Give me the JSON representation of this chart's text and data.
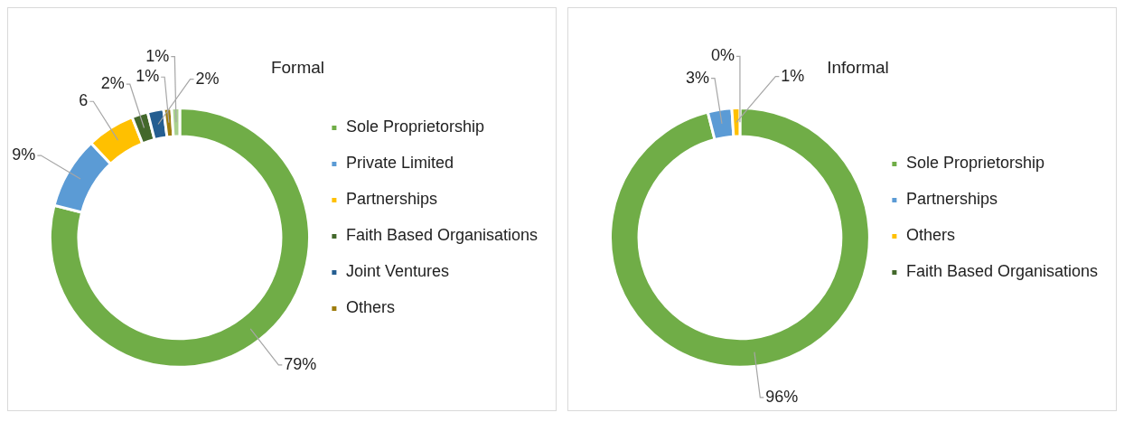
{
  "chart_data": [
    {
      "type": "donut",
      "title": "Formal",
      "categories": [
        "Sole Proprietorship",
        "Private Limited",
        "Partnerships",
        "Faith Based Organisations",
        "Joint Ventures",
        "Others",
        null
      ],
      "values": [
        79,
        9,
        6,
        2,
        2,
        1,
        1
      ],
      "colors": [
        "#70ad47",
        "#5b9bd5",
        "#ffc000",
        "#43682b",
        "#255e91",
        "#9e7c0c",
        "#a9d18e"
      ],
      "value_labels": [
        "79%",
        "9%",
        "6",
        "2%",
        "2%",
        "1%",
        "1%"
      ],
      "legend": "right"
    },
    {
      "type": "donut",
      "title": "Informal",
      "categories": [
        "Sole Proprietorship",
        "Partnerships",
        "Others",
        "Faith Based Organisations"
      ],
      "values": [
        96,
        3,
        1,
        0
      ],
      "colors": [
        "#70ad47",
        "#5b9bd5",
        "#ffc000",
        "#43682b"
      ],
      "value_labels": [
        "96%",
        "3%",
        "1%",
        "0%"
      ],
      "legend": "right"
    }
  ]
}
